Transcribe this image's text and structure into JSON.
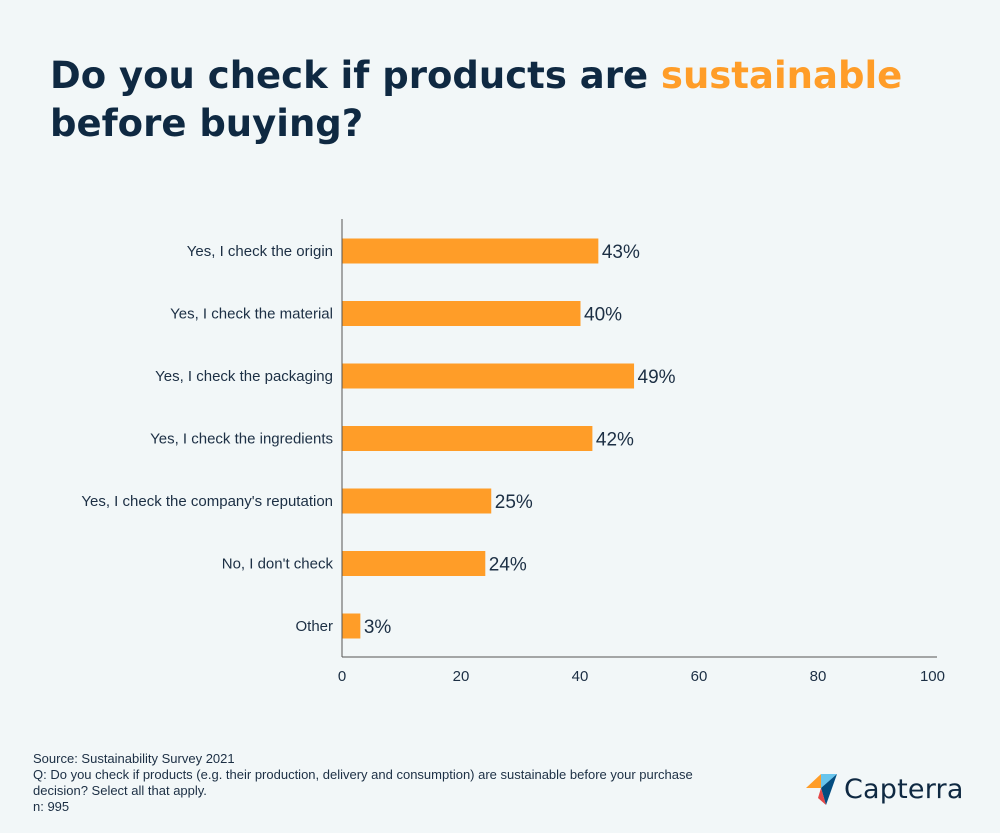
{
  "title": {
    "part1": "Do you check if products are ",
    "highlight": "sustainable",
    "part2": "before buying?"
  },
  "chart_data": {
    "type": "bar",
    "orientation": "horizontal",
    "categories": [
      "Yes, I check the origin",
      "Yes, I check the material",
      "Yes, I check the packaging",
      "Yes, I check the ingredients",
      "Yes, I check the company's reputation",
      "No, I don't check",
      "Other"
    ],
    "values": [
      43,
      40,
      49,
      42,
      25,
      24,
      3
    ],
    "data_labels": [
      "43%",
      "40%",
      "49%",
      "42%",
      "25%",
      "24%",
      "3%"
    ],
    "xlim": [
      0,
      100
    ],
    "xticks": [
      0,
      20,
      40,
      60,
      80,
      100
    ],
    "grid": false,
    "bar_color": "#ff9d28"
  },
  "footer": {
    "source": "Source: Sustainability Survey 2021",
    "question_line1": "Q: Do you check if products (e.g. their production, delivery and consumption) are sustainable before your purchase",
    "question_line2": "decision? Select all that apply.",
    "n": "n: 995"
  },
  "logo": {
    "text": "Capterra",
    "icon": "capterra-arrow-icon",
    "colors": [
      "#ff9d28",
      "#68c5ed",
      "#044d80",
      "#e54747"
    ]
  },
  "colors": {
    "background": "#f2f7f8",
    "text": "#0f2942",
    "accent": "#ff9d28"
  }
}
